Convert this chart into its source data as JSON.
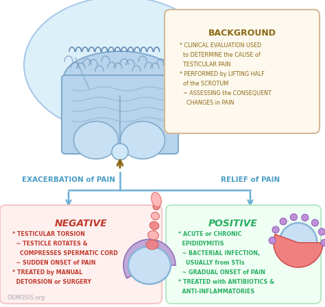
{
  "bg_color": "#ffffff",
  "background_box": {
    "title": "BACKGROUND",
    "title_color": "#8B6914",
    "bg_color": "#FEF9EE",
    "border_color": "#D4B896",
    "line1": "* CLINICAL EVALUATION USED",
    "line2": "  to DETERMINE the CAUSE of",
    "line3": "  TESTICULAR PAIN",
    "line4": "* PERFORMED by LIFTING HALF",
    "line5": "  of the SCROTUM",
    "line6": "  ~ ASSESSING the CONSEQUENT",
    "line7": "    CHANGES in PAIN",
    "bullet_color": "#8B6914"
  },
  "connector_color": "#6BAED6",
  "left_label_big": "EXACERBATION",
  "left_label_small": "of PAIN",
  "right_label_big": "RELIEF",
  "right_label_small": "of PAIN",
  "label_color": "#4A9CC4",
  "negative_box": {
    "title": "NEGATIVE",
    "title_color": "#C0392B",
    "bg_color": "#FFF0F0",
    "border_color": "#F5C6C6",
    "line1": "* TESTICULAR TORSION",
    "line2": "  ~ TESTICLE ROTATES &",
    "line3": "    COMPRESSES SPERMATIC CORD",
    "line4": "  ~ SUDDEN ONSET of PAIN",
    "line5": "* TREATED by MANUAL",
    "line6": "  DETORSION or SURGERY",
    "bullet_color": "#C0392B"
  },
  "positive_box": {
    "title": "POSITIVE",
    "title_color": "#27AE60",
    "bg_color": "#F0FFF4",
    "border_color": "#B8E8C8",
    "line1": "* ACUTE or CHRONIC",
    "line2": "  EPIDIDYMITIS",
    "line3": "  ~ BACTERIAL INFECTION,",
    "line4": "    USUALLY from STIs",
    "line5": "  ~ GRADUAL ONSET of PAIN",
    "line6": "* TREATED with ANTIBIOTICS &",
    "line7": "  ANTI-INFLAMMATORIES",
    "bullet_color": "#27AE60"
  },
  "watermark": "OSMOSIS.org",
  "watermark_color": "#AAAAAA",
  "scrotum": {
    "outer_color": "#D8EBFA",
    "outer_edge": "#A0C4E0",
    "inner_color": "#B8D8F0",
    "inner_edge": "#7AAAD0",
    "detail_color": "#8AAEC8",
    "testis_color": "#C8DFF4",
    "arrow_color": "#8B6914"
  },
  "torsion_testis": {
    "testis_color": "#C8DFF4",
    "testis_edge": "#88B4D8",
    "epid_color": "#C0A8D8",
    "epid_edge": "#9070B8",
    "cord_color": "#F09090",
    "cord_edge": "#D06060",
    "cord_tip_color": "#FFB0B0"
  },
  "epid_testis": {
    "testis_color": "#C8DFF4",
    "testis_edge": "#88B4D8",
    "epid_color": "#F08080",
    "epid_edge": "#D05050",
    "squig_color": "#C090D8",
    "squig_edge": "#9060B8"
  }
}
